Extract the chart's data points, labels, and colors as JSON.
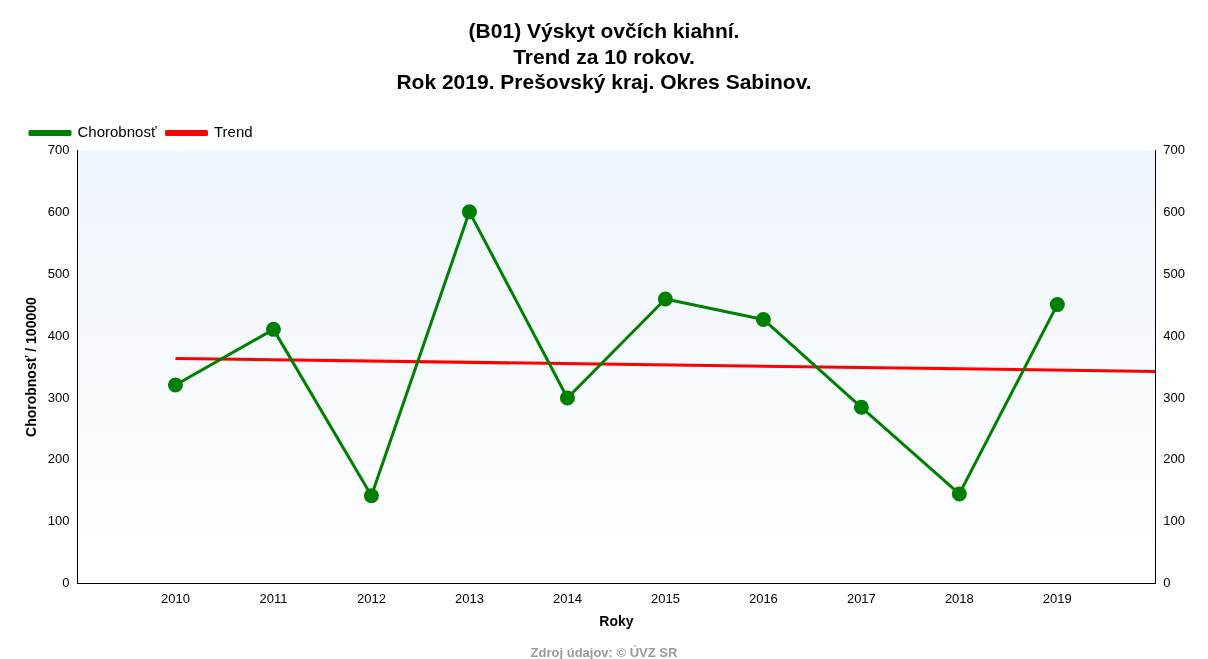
{
  "chart_data": {
    "type": "line",
    "title": "(B01) Výskyt ovčích kiahní.\nTrend za 10 rokov.\nRok 2019. Prešovský kraj. Okres Sabinov.",
    "xlabel": "Roky",
    "ylabel": "Chorobnosť / 100000",
    "x": [
      2010,
      2011,
      2012,
      2013,
      2014,
      2015,
      2016,
      2017,
      2018,
      2019
    ],
    "series": [
      {
        "name": "Chorobnosť",
        "color": "#008000",
        "values": [
          321,
          411,
          142,
          601,
          300,
          460,
          427,
          285,
          145,
          451
        ],
        "marker": "circle"
      },
      {
        "name": "Trend",
        "color": "#ff0000",
        "x": [
          2010,
          2020
        ],
        "values": [
          364,
          343
        ],
        "marker": "none"
      }
    ],
    "xlim": [
      2009,
      2020
    ],
    "xticks": [
      2010,
      2011,
      2012,
      2013,
      2014,
      2015,
      2016,
      2017,
      2018,
      2019
    ],
    "ylim": [
      0,
      700
    ],
    "yticks": [
      0,
      100,
      200,
      300,
      400,
      500,
      600,
      700
    ],
    "y2lim": [
      0,
      700
    ],
    "y2ticks": [
      0,
      100,
      200,
      300,
      400,
      500,
      600,
      700
    ],
    "legend": "top left",
    "grid": false,
    "annotations": [
      "Zdroj údajov: © ÚVZ SR"
    ]
  }
}
